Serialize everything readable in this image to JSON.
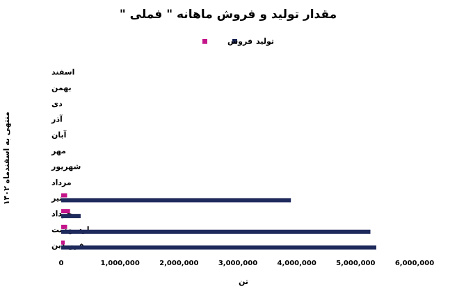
{
  "chart_data": {
    "type": "bar",
    "orientation": "horizontal",
    "title": "مقدار تولید و فروش ماهانه \" فملی \"",
    "xlabel": "تن",
    "ylabel": "منتهی به اسفندماه ۱۴۰۲",
    "xlim": [
      0,
      6000000
    ],
    "xticks": [
      0,
      1000000,
      2000000,
      3000000,
      4000000,
      5000000,
      6000000
    ],
    "xtick_labels": [
      "0",
      "1,000,000",
      "2,000,000",
      "3,000,000",
      "4,000,000",
      "5,000,000",
      "6,000,000"
    ],
    "legend_position": "top",
    "grid": false,
    "categories": [
      "فروردین",
      "اردیبهشت",
      "خرداد",
      "تیر",
      "مرداد",
      "شهریور",
      "مهر",
      "آبان",
      "آذر",
      "دی",
      "بهمن",
      "اسفند"
    ],
    "series": [
      {
        "name": "تولید",
        "color": "#1f2a5c",
        "values": [
          5350000,
          5250000,
          330000,
          3900000,
          null,
          null,
          null,
          null,
          null,
          null,
          null,
          null
        ]
      },
      {
        "name": "فروش",
        "color": "#c4168a",
        "values": [
          60000,
          100000,
          150000,
          100000,
          null,
          null,
          null,
          null,
          null,
          null,
          null,
          null
        ]
      }
    ]
  }
}
